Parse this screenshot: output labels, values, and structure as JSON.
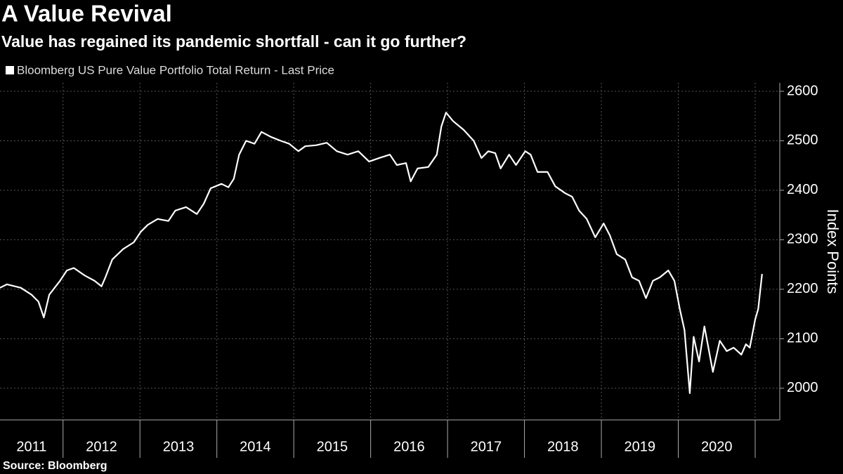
{
  "chart_data": {
    "type": "line",
    "title": "A Value Revival",
    "subtitle": "Value has regained its pandemic shortfall - can it go further?",
    "y_label": "Index Points",
    "source": "Source: Bloomberg",
    "x": [
      2011.18,
      2011.27,
      2011.45,
      2011.59,
      2011.68,
      2011.75,
      2011.82,
      2011.96,
      2012.05,
      2012.14,
      2012.28,
      2012.41,
      2012.5,
      2012.55,
      2012.64,
      2012.78,
      2012.92,
      2013.01,
      2013.1,
      2013.23,
      2013.37,
      2013.46,
      2013.6,
      2013.74,
      2013.83,
      2013.92,
      2014.06,
      2014.15,
      2014.22,
      2014.29,
      2014.38,
      2014.49,
      2014.58,
      2014.7,
      2014.83,
      2014.94,
      2015.06,
      2015.15,
      2015.29,
      2015.43,
      2015.56,
      2015.7,
      2015.84,
      2015.98,
      2016.11,
      2016.25,
      2016.34,
      2016.46,
      2016.52,
      2016.61,
      2016.75,
      2016.86,
      2016.92,
      2016.98,
      2017.07,
      2017.21,
      2017.34,
      2017.44,
      2017.53,
      2017.62,
      2017.69,
      2017.8,
      2017.89,
      2018.01,
      2018.08,
      2018.17,
      2018.3,
      2018.4,
      2018.53,
      2018.62,
      2018.71,
      2018.81,
      2018.92,
      2019.03,
      2019.11,
      2019.2,
      2019.31,
      2019.4,
      2019.49,
      2019.58,
      2019.67,
      2019.76,
      2019.87,
      2019.95,
      2020.02,
      2020.08,
      2020.15,
      2020.2,
      2020.27,
      2020.34,
      2020.4,
      2020.45,
      2020.54,
      2020.63,
      2020.72,
      2020.82,
      2020.88,
      2020.93,
      2021.0,
      2021.04,
      2021.09
    ],
    "series": [
      {
        "name": "Bloomberg US Pure Value Portfolio Total Return - Last Price",
        "color": "#ffffff",
        "values": [
          2203,
          2210,
          2203,
          2189,
          2175,
          2143,
          2189,
          2217,
          2238,
          2243,
          2228,
          2217,
          2206,
          2224,
          2260,
          2281,
          2295,
          2316,
          2330,
          2342,
          2338,
          2359,
          2366,
          2352,
          2373,
          2404,
          2413,
          2406,
          2423,
          2472,
          2500,
          2494,
          2518,
          2508,
          2500,
          2494,
          2479,
          2489,
          2491,
          2496,
          2479,
          2472,
          2479,
          2458,
          2465,
          2472,
          2451,
          2455,
          2418,
          2444,
          2447,
          2472,
          2529,
          2557,
          2540,
          2522,
          2500,
          2465,
          2479,
          2475,
          2444,
          2472,
          2451,
          2479,
          2472,
          2437,
          2437,
          2408,
          2394,
          2387,
          2359,
          2342,
          2305,
          2333,
          2309,
          2271,
          2260,
          2224,
          2217,
          2182,
          2217,
          2224,
          2238,
          2217,
          2160,
          2118,
          1990,
          2104,
          2054,
          2125,
          2075,
          2033,
          2096,
          2075,
          2082,
          2068,
          2089,
          2082,
          2139,
          2160,
          2231
        ]
      }
    ],
    "xlim": [
      2011.18,
      2021.32
    ],
    "xticks": [
      2012,
      2013,
      2014,
      2015,
      2016,
      2017,
      2018,
      2019,
      2020,
      2021
    ],
    "x_labels": [
      2011,
      2012,
      2013,
      2014,
      2015,
      2016,
      2017,
      2018,
      2019,
      2020
    ],
    "ylim": [
      1936,
      2617
    ],
    "yticks": [
      2000,
      2100,
      2200,
      2300,
      2400,
      2500,
      2600
    ],
    "grid": true
  }
}
